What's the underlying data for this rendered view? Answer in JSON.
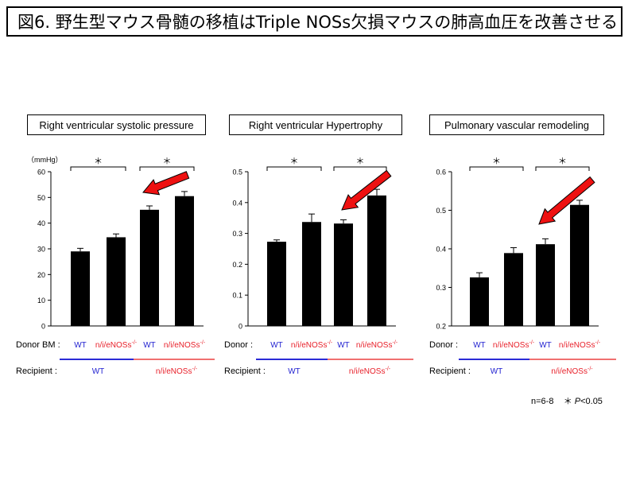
{
  "title": "図6. 野生型マウス骨髄の移植はTriple NOSs欠損マウスの肺高血圧を改善させる",
  "footnote": {
    "n": "n=6-8",
    "star": "＊",
    "p": "P",
    "rest": "<0.05"
  },
  "colors": {
    "wt": "#1f1fd0",
    "ko": "#e8202a",
    "wt_line": "#2b2bd6",
    "ko_line": "#f07070",
    "bar": "#000000",
    "arrow": "#ee1111"
  },
  "chart_data": [
    {
      "type": "bar",
      "title": "Right ventricular systolic pressure",
      "unit_label": "（mmHg）",
      "ylim": [
        0,
        60
      ],
      "yticks": [
        "0",
        "10",
        "20",
        "30",
        "40",
        "50",
        "60"
      ],
      "categories": [
        "WT / WT",
        "n/i/eNOSs-/- / WT",
        "WT / n/i/eNOSs-/-",
        "n/i/eNOSs-/- / n/i/eNOSs-/-"
      ],
      "values": [
        29,
        34.5,
        45.2,
        50.5
      ],
      "errors": [
        1.2,
        1.3,
        1.5,
        1.8
      ],
      "donor_label": "Donor BM :",
      "recipient_label": "Recipient :",
      "donor": [
        "WT",
        "n/i/eNOSs",
        "WT",
        "n/i/eNOSs"
      ],
      "donor_sup": [
        "",
        "-/-",
        "",
        "-/-"
      ],
      "recipient": [
        "WT",
        "n/i/eNOSs"
      ],
      "recipient_sup": [
        "",
        "-/-"
      ],
      "sig": [
        "＊",
        "＊"
      ]
    },
    {
      "type": "bar",
      "title": "Right ventricular Hypertrophy",
      "unit_label": "",
      "ylim": [
        0,
        0.5
      ],
      "yticks": [
        "0",
        "0.1",
        "0.2",
        "0.3",
        "0.4",
        "0.5"
      ],
      "categories": [
        "WT / WT",
        "n/i/eNOSs-/- / WT",
        "WT / n/i/eNOSs-/-",
        "n/i/eNOSs-/- / n/i/eNOSs-/-"
      ],
      "values": [
        0.273,
        0.337,
        0.332,
        0.423
      ],
      "errors": [
        0.006,
        0.026,
        0.012,
        0.02
      ],
      "donor_label": "Donor :",
      "recipient_label": "Recipient :",
      "donor": [
        "WT",
        "n/i/eNOSs",
        "WT",
        "n/i/eNOSs"
      ],
      "donor_sup": [
        "",
        "-/-",
        "",
        "-/-"
      ],
      "recipient": [
        "WT",
        "n/i/eNOSs"
      ],
      "recipient_sup": [
        "",
        "-/-"
      ],
      "sig": [
        "＊",
        "＊"
      ]
    },
    {
      "type": "bar",
      "title": "Pulmonary vascular remodeling",
      "unit_label": "",
      "ylim": [
        0.2,
        0.6
      ],
      "yticks": [
        "0.2",
        "0.3",
        "0.4",
        "0.5",
        "0.6"
      ],
      "categories": [
        "WT / WT",
        "n/i/eNOSs-/- / WT",
        "WT / n/i/eNOSs-/-",
        "n/i/eNOSs-/- / n/i/eNOSs-/-"
      ],
      "values": [
        0.326,
        0.389,
        0.412,
        0.514
      ],
      "errors": [
        0.012,
        0.014,
        0.014,
        0.012
      ],
      "donor_label": "Donor :",
      "recipient_label": "Recipient :",
      "donor": [
        "WT",
        "n/i/eNOSs",
        "WT",
        "n/i/eNOSs"
      ],
      "donor_sup": [
        "",
        "-/-",
        "",
        "-/-"
      ],
      "recipient": [
        "WT",
        "n/i/eNOSs"
      ],
      "recipient_sup": [
        "",
        "-/-"
      ],
      "sig": [
        "＊",
        "＊"
      ]
    }
  ]
}
